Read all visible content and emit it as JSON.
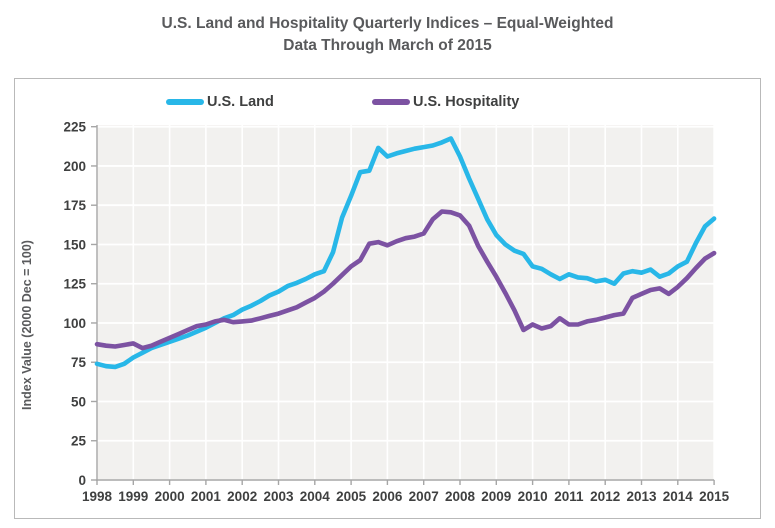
{
  "title": {
    "line1": "U.S. Land and Hospitality Quarterly Indices – Equal-Weighted",
    "line2": "Data Through March of 2015"
  },
  "legend": [
    {
      "label": "U.S. Land",
      "color": "#28b7e8"
    },
    {
      "label": "U.S. Hospitality",
      "color": "#7c52a2"
    }
  ],
  "chart_data": {
    "type": "line",
    "title": "U.S. Land and Hospitality Quarterly Indices – Equal-Weighted Data Through March of 2015",
    "ylabel": "Index Value (2000 Dec = 100)",
    "xlabel": "",
    "ylim": [
      0,
      225
    ],
    "yticks": [
      0,
      25,
      50,
      75,
      100,
      125,
      150,
      175,
      200,
      225
    ],
    "xticks": [
      1998,
      1999,
      2000,
      2001,
      2002,
      2003,
      2004,
      2005,
      2006,
      2007,
      2008,
      2009,
      2010,
      2011,
      2012,
      2013,
      2014,
      2015
    ],
    "x_start_year": 1998,
    "x_quarter_step": 0.25,
    "grid": true,
    "legend_position": "top",
    "series": [
      {
        "name": "U.S. Land",
        "color": "#28b7e8",
        "values": [
          74,
          72.5,
          72,
          74,
          78,
          81,
          84,
          86,
          88,
          90,
          92,
          94.5,
          97,
          100,
          103,
          105,
          108.5,
          111,
          114,
          117.5,
          120,
          123.5,
          125.5,
          128,
          131,
          133,
          145,
          167,
          181,
          196,
          197,
          211.5,
          206,
          208,
          209.5,
          211,
          212,
          213,
          215,
          217.5,
          206,
          192,
          179,
          166,
          156,
          150,
          146,
          144,
          136,
          134.5,
          131,
          128,
          131,
          129,
          128.5,
          126.5,
          127.5,
          125,
          131.5,
          133,
          132,
          134,
          129.5,
          131.5,
          136,
          139,
          151,
          161.5,
          166.5
        ]
      },
      {
        "name": "U.S. Hospitality",
        "color": "#7c52a2",
        "values": [
          86.5,
          85.5,
          85,
          86,
          87,
          84,
          85.5,
          88,
          90.5,
          93,
          95.5,
          98,
          99,
          101,
          102,
          100.5,
          101,
          101.5,
          103,
          104.5,
          106,
          108,
          110,
          113,
          116,
          120,
          125,
          130.5,
          136,
          140,
          150.5,
          151.5,
          149.5,
          152,
          154,
          155,
          157,
          166,
          171,
          170.5,
          168.5,
          162,
          149,
          139,
          129.5,
          119,
          108,
          95.5,
          99,
          96.5,
          98,
          103,
          99,
          99,
          101,
          102,
          103.5,
          105,
          106,
          116,
          118.5,
          121,
          122,
          118.5,
          123,
          128.5,
          135,
          141,
          144.5
        ]
      }
    ]
  }
}
